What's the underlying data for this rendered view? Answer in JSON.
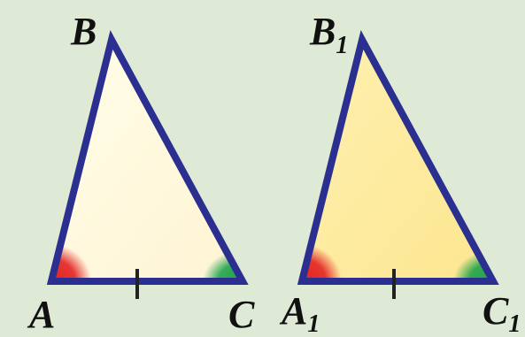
{
  "figure": {
    "background_color": "#dfead6",
    "outline_color": "#2b2f8f",
    "angle_mark_colors": {
      "vertex_a": "#e32222",
      "vertex_c": "#1fa34a"
    },
    "triangles": [
      {
        "id": "triangle-abc",
        "fill_color": "#fff8df",
        "labels": {
          "top": {
            "letter": "B",
            "subscript": ""
          },
          "left": {
            "letter": "A",
            "subscript": ""
          },
          "right": {
            "letter": "C",
            "subscript": ""
          }
        },
        "marked_side": "AC",
        "marked_angles": [
          "A",
          "C"
        ]
      },
      {
        "id": "triangle-a1b1c1",
        "fill_color": "#fde99a",
        "labels": {
          "top": {
            "letter": "B",
            "subscript": "1"
          },
          "left": {
            "letter": "A",
            "subscript": "1"
          },
          "right": {
            "letter": "C",
            "subscript": "1"
          }
        },
        "marked_side": "A1C1",
        "marked_angles": [
          "A1",
          "C1"
        ]
      }
    ]
  }
}
